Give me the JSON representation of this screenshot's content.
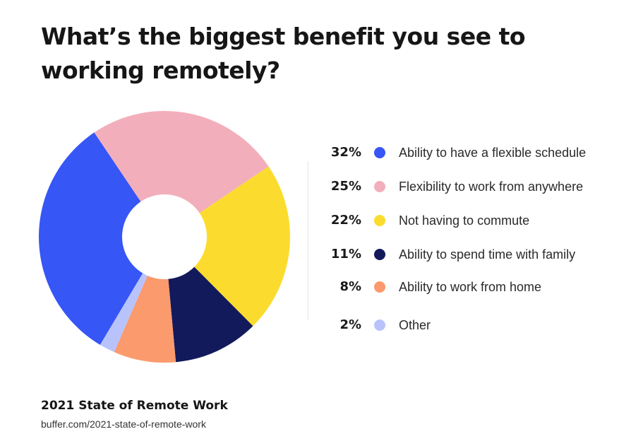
{
  "title": "What’s the biggest benefit you see to working remotely?",
  "footer": {
    "source_title": "2021 State of Remote Work",
    "source_url": "buffer.com/2021-state-of-remote-work"
  },
  "chart_data": {
    "type": "pie",
    "title": "What’s the biggest benefit you see to working remotely?",
    "donut": true,
    "legend_position": "right",
    "slices": [
      {
        "label": "Ability to have a flexible schedule",
        "value": 32,
        "pct_label": "32%",
        "color": "#3656f5"
      },
      {
        "label": "Flexibility to work from anywhere",
        "value": 25,
        "pct_label": "25%",
        "color": "#f2afbb"
      },
      {
        "label": "Not having to commute",
        "value": 22,
        "pct_label": "22%",
        "color": "#fbdc2e"
      },
      {
        "label": "Ability to spend time with family",
        "value": 11,
        "pct_label": "11%",
        "color": "#121a5c"
      },
      {
        "label": "Ability to work from home",
        "value": 8,
        "pct_label": "8%",
        "color": "#fb9a6c"
      },
      {
        "label": "Other",
        "value": 2,
        "pct_label": "2%",
        "color": "#b9c3fb"
      }
    ]
  }
}
